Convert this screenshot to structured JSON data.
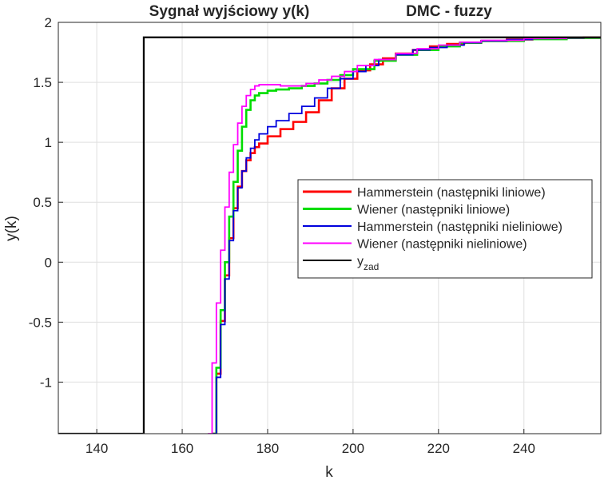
{
  "chart_data": {
    "type": "line",
    "title": "Sygnał wyjściowy y(k)",
    "subtitle": "DMC - fuzzy",
    "xlabel": "k",
    "ylabel": "y(k)",
    "xlim": [
      131,
      258
    ],
    "ylim": [
      -1.43,
      2.0
    ],
    "xticks": [
      140,
      160,
      180,
      200,
      220,
      240
    ],
    "yticks": [
      -1,
      -0.5,
      0,
      0.5,
      1,
      1.5,
      2
    ],
    "xtick_labels": [
      "140",
      "160",
      "180",
      "200",
      "220",
      "240"
    ],
    "ytick_labels": [
      "-1",
      "-0.5",
      "0",
      "0.5",
      "1",
      "1.5",
      "2"
    ],
    "grid": true,
    "legend_position": "right",
    "series": [
      {
        "name": "Hammerstein (następniki liniowe)",
        "color": "#ff0000",
        "style": "stairs",
        "x": [
          167,
          168,
          169,
          170,
          171,
          172,
          173,
          174,
          175,
          176,
          177,
          178,
          180,
          183,
          186,
          189,
          192,
          195,
          198,
          201,
          204,
          207,
          210,
          214,
          218,
          222,
          226,
          230,
          236,
          242,
          248,
          254,
          258
        ],
        "y": [
          -1.43,
          -0.93,
          -0.49,
          -0.11,
          0.2,
          0.45,
          0.63,
          0.76,
          0.85,
          0.91,
          0.96,
          0.99,
          1.05,
          1.11,
          1.17,
          1.25,
          1.35,
          1.45,
          1.53,
          1.6,
          1.65,
          1.7,
          1.74,
          1.77,
          1.8,
          1.82,
          1.83,
          1.845,
          1.857,
          1.865,
          1.87,
          1.873,
          1.875
        ]
      },
      {
        "name": "Wiener (następniki liniowe)",
        "color": "#00dd00",
        "style": "stairs",
        "x": [
          167,
          168,
          169,
          170,
          171,
          172,
          173,
          174,
          175,
          176,
          177,
          178,
          180,
          182,
          185,
          188,
          191,
          194,
          197,
          200,
          205,
          210,
          215,
          220,
          225,
          230,
          240,
          250,
          258
        ],
        "y": [
          -1.43,
          -0.88,
          -0.4,
          0.0,
          0.38,
          0.67,
          0.93,
          1.13,
          1.27,
          1.35,
          1.39,
          1.41,
          1.43,
          1.44,
          1.45,
          1.47,
          1.49,
          1.52,
          1.56,
          1.61,
          1.68,
          1.73,
          1.77,
          1.8,
          1.83,
          1.845,
          1.86,
          1.87,
          1.873
        ]
      },
      {
        "name": "Hammerstein (następniki nieliniowe)",
        "color": "#0000dd",
        "style": "stairs",
        "x": [
          167,
          168,
          169,
          170,
          171,
          172,
          173,
          174,
          175,
          176,
          177,
          178,
          180,
          182,
          185,
          188,
          191,
          194,
          197,
          200,
          203,
          206,
          210,
          214,
          218,
          222,
          226,
          230,
          236,
          242,
          248,
          254,
          258
        ],
        "y": [
          -1.43,
          -0.96,
          -0.52,
          -0.14,
          0.18,
          0.43,
          0.62,
          0.76,
          0.87,
          0.95,
          1.02,
          1.07,
          1.13,
          1.18,
          1.24,
          1.3,
          1.37,
          1.45,
          1.53,
          1.59,
          1.64,
          1.69,
          1.73,
          1.77,
          1.79,
          1.81,
          1.83,
          1.845,
          1.857,
          1.865,
          1.87,
          1.873,
          1.875
        ]
      },
      {
        "name": "Wiener (następniki nieliniowe)",
        "color": "#ff00ff",
        "style": "stairs",
        "x": [
          166,
          167,
          168,
          169,
          170,
          171,
          172,
          173,
          174,
          175,
          176,
          177,
          178,
          180,
          183,
          186,
          189,
          192,
          195,
          198,
          201,
          205,
          210,
          215,
          220,
          225,
          230,
          240,
          250,
          258
        ],
        "y": [
          -1.43,
          -0.84,
          -0.34,
          0.1,
          0.46,
          0.75,
          0.98,
          1.16,
          1.3,
          1.39,
          1.44,
          1.47,
          1.48,
          1.48,
          1.47,
          1.47,
          1.49,
          1.52,
          1.55,
          1.59,
          1.64,
          1.69,
          1.74,
          1.78,
          1.81,
          1.835,
          1.85,
          1.865,
          1.872,
          1.875
        ]
      },
      {
        "name": "y_zad",
        "color": "#000000",
        "style": "line",
        "x": [
          131,
          151,
          151,
          258
        ],
        "y": [
          -1.43,
          -1.43,
          1.875,
          1.875
        ]
      }
    ],
    "legend": [
      {
        "label": "Hammerstein (następniki liniowe)",
        "color": "#ff0000",
        "width": 3
      },
      {
        "label": "Wiener (następniki liniowe)",
        "color": "#00dd00",
        "width": 3
      },
      {
        "label": "Hammerstein (następniki nieliniowe)",
        "color": "#0000dd",
        "width": 2
      },
      {
        "label": "Wiener (następniki nieliniowe)",
        "color": "#ff00ff",
        "width": 2
      },
      {
        "label": "y",
        "sub": "zad",
        "color": "#000000",
        "width": 2
      }
    ]
  }
}
